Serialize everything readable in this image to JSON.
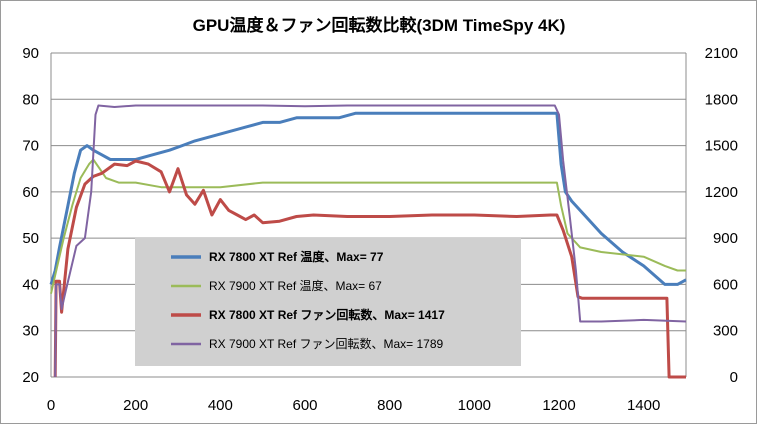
{
  "chart_data": {
    "type": "line",
    "title": "GPU温度＆ファン回転数比較(3DM TimeSpy 4K)",
    "xlim": [
      0,
      1500
    ],
    "x_ticks": [
      0,
      200,
      400,
      600,
      800,
      1000,
      1200,
      1400
    ],
    "y_left": {
      "ylim": [
        20,
        90
      ],
      "ticks": [
        20,
        30,
        40,
        50,
        60,
        70,
        80,
        90
      ]
    },
    "y_right": {
      "ylim": [
        0,
        2100
      ],
      "ticks": [
        0,
        300,
        600,
        900,
        1200,
        1500,
        1800,
        2100
      ]
    },
    "grid": "horizontal",
    "legend_position": "center-left",
    "series": [
      {
        "name": "RX 7800 XT Ref 温度、Max= 77",
        "axis": "left",
        "color": "#4a7ebb",
        "width": 3,
        "bold": true,
        "points": [
          [
            0,
            40
          ],
          [
            10,
            43
          ],
          [
            20,
            48
          ],
          [
            40,
            57
          ],
          [
            55,
            64
          ],
          [
            70,
            69
          ],
          [
            85,
            70
          ],
          [
            100,
            69
          ],
          [
            120,
            68
          ],
          [
            140,
            67
          ],
          [
            200,
            67
          ],
          [
            240,
            68
          ],
          [
            280,
            69
          ],
          [
            310,
            70
          ],
          [
            340,
            71
          ],
          [
            380,
            72
          ],
          [
            420,
            73
          ],
          [
            460,
            74
          ],
          [
            500,
            75
          ],
          [
            540,
            75
          ],
          [
            580,
            76
          ],
          [
            620,
            76
          ],
          [
            680,
            76
          ],
          [
            720,
            77
          ],
          [
            800,
            77
          ],
          [
            900,
            77
          ],
          [
            1000,
            77
          ],
          [
            1100,
            77
          ],
          [
            1195,
            77
          ],
          [
            1205,
            66
          ],
          [
            1215,
            60
          ],
          [
            1230,
            58
          ],
          [
            1260,
            55
          ],
          [
            1300,
            51
          ],
          [
            1350,
            47
          ],
          [
            1400,
            44
          ],
          [
            1450,
            40
          ],
          [
            1480,
            40
          ],
          [
            1500,
            41
          ]
        ]
      },
      {
        "name": "RX 7900 XT Ref 温度、Max= 67",
        "axis": "left",
        "color": "#9bbb59",
        "width": 2,
        "bold": false,
        "points": [
          [
            0,
            38
          ],
          [
            10,
            42
          ],
          [
            30,
            50
          ],
          [
            50,
            57
          ],
          [
            70,
            63
          ],
          [
            90,
            66
          ],
          [
            100,
            67
          ],
          [
            115,
            65
          ],
          [
            130,
            63
          ],
          [
            160,
            62
          ],
          [
            200,
            62
          ],
          [
            260,
            61
          ],
          [
            400,
            61
          ],
          [
            500,
            62
          ],
          [
            600,
            62
          ],
          [
            800,
            62
          ],
          [
            1000,
            62
          ],
          [
            1100,
            62
          ],
          [
            1180,
            62
          ],
          [
            1195,
            62
          ],
          [
            1205,
            57
          ],
          [
            1220,
            51
          ],
          [
            1250,
            48
          ],
          [
            1300,
            47
          ],
          [
            1400,
            46
          ],
          [
            1450,
            44
          ],
          [
            1480,
            43
          ],
          [
            1500,
            43
          ]
        ]
      },
      {
        "name": "RX 7800 XT Ref ファン回転数、Max= 1417",
        "axis": "right",
        "color": "#be4b48",
        "width": 3,
        "bold": true,
        "points": [
          [
            10,
            0
          ],
          [
            12,
            620
          ],
          [
            20,
            620
          ],
          [
            25,
            420
          ],
          [
            30,
            560
          ],
          [
            40,
            830
          ],
          [
            60,
            1100
          ],
          [
            80,
            1250
          ],
          [
            100,
            1300
          ],
          [
            120,
            1320
          ],
          [
            150,
            1380
          ],
          [
            180,
            1370
          ],
          [
            200,
            1400
          ],
          [
            230,
            1380
          ],
          [
            260,
            1330
          ],
          [
            280,
            1200
          ],
          [
            300,
            1350
          ],
          [
            320,
            1180
          ],
          [
            340,
            1120
          ],
          [
            360,
            1210
          ],
          [
            380,
            1050
          ],
          [
            400,
            1150
          ],
          [
            420,
            1080
          ],
          [
            440,
            1050
          ],
          [
            460,
            1020
          ],
          [
            480,
            1050
          ],
          [
            500,
            1000
          ],
          [
            540,
            1010
          ],
          [
            580,
            1040
          ],
          [
            620,
            1050
          ],
          [
            700,
            1040
          ],
          [
            800,
            1040
          ],
          [
            900,
            1050
          ],
          [
            1000,
            1050
          ],
          [
            1100,
            1040
          ],
          [
            1180,
            1050
          ],
          [
            1195,
            1050
          ],
          [
            1210,
            950
          ],
          [
            1230,
            780
          ],
          [
            1245,
            520
          ],
          [
            1255,
            510
          ],
          [
            1300,
            510
          ],
          [
            1400,
            510
          ],
          [
            1455,
            510
          ],
          [
            1460,
            0
          ],
          [
            1500,
            0
          ]
        ]
      },
      {
        "name": "RX 7900 XT Ref ファン回転数、Max= 1789",
        "axis": "right",
        "color": "#8064a2",
        "width": 2,
        "bold": false,
        "points": [
          [
            10,
            0
          ],
          [
            12,
            600
          ],
          [
            20,
            600
          ],
          [
            25,
            440
          ],
          [
            35,
            560
          ],
          [
            60,
            850
          ],
          [
            80,
            900
          ],
          [
            95,
            1200
          ],
          [
            105,
            1700
          ],
          [
            112,
            1760
          ],
          [
            150,
            1750
          ],
          [
            200,
            1760
          ],
          [
            300,
            1760
          ],
          [
            400,
            1760
          ],
          [
            500,
            1760
          ],
          [
            600,
            1755
          ],
          [
            700,
            1760
          ],
          [
            800,
            1760
          ],
          [
            900,
            1760
          ],
          [
            1000,
            1760
          ],
          [
            1100,
            1760
          ],
          [
            1190,
            1760
          ],
          [
            1200,
            1700
          ],
          [
            1210,
            1400
          ],
          [
            1225,
            1050
          ],
          [
            1240,
            690
          ],
          [
            1250,
            360
          ],
          [
            1270,
            360
          ],
          [
            1300,
            360
          ],
          [
            1400,
            370
          ],
          [
            1500,
            360
          ]
        ]
      }
    ]
  }
}
